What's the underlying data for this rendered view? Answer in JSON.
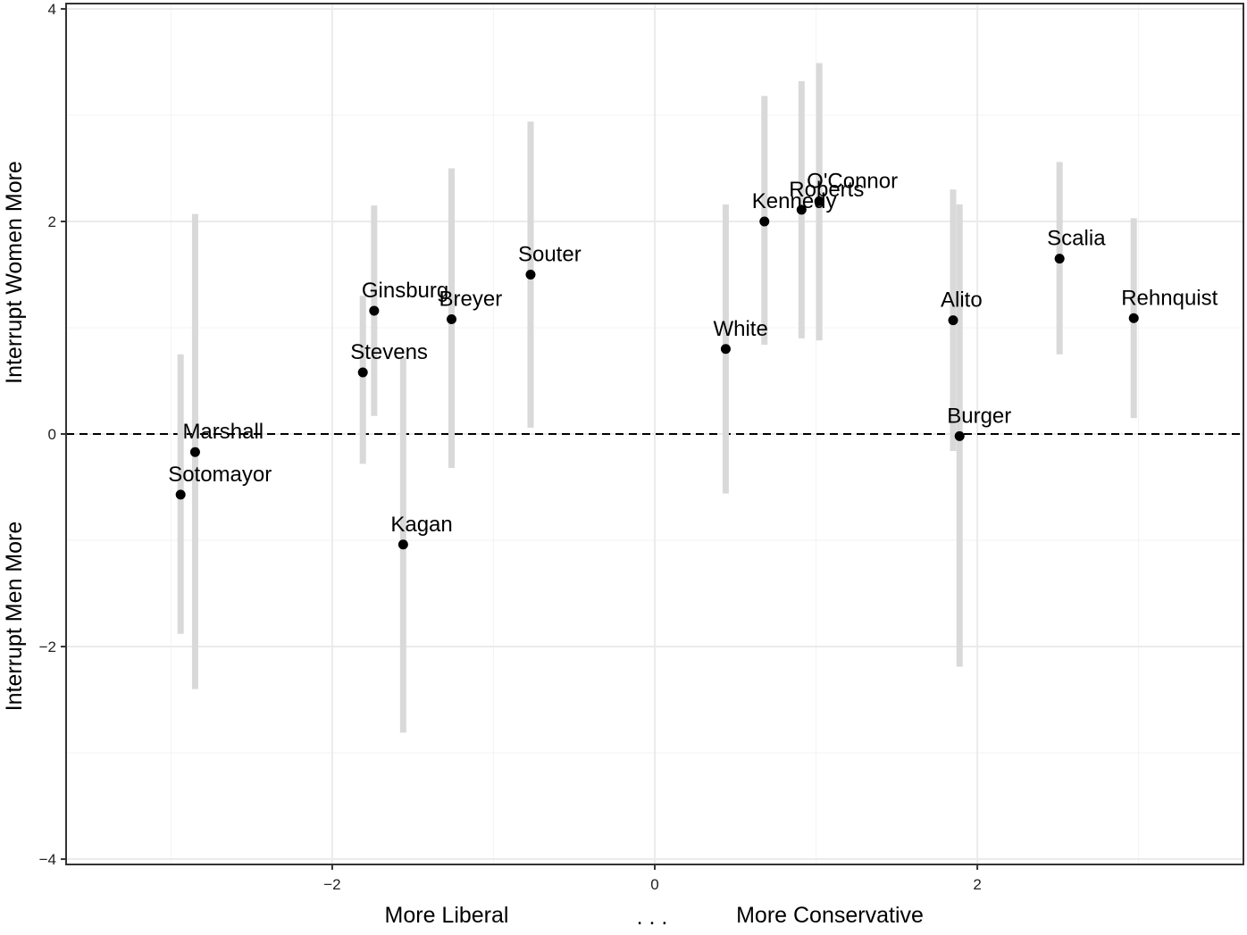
{
  "chart_data": {
    "type": "scatter",
    "xlim": [
      -3.65,
      3.65
    ],
    "ylim": [
      -4.05,
      4.05
    ],
    "x_ticks": [
      {
        "value": -2,
        "label": "−2"
      },
      {
        "value": 0,
        "label": "0"
      },
      {
        "value": 2,
        "label": "2"
      }
    ],
    "y_ticks": [
      {
        "value": 4,
        "label": "4"
      },
      {
        "value": 2,
        "label": "2"
      },
      {
        "value": 0,
        "label": "0"
      },
      {
        "value": -2,
        "label": "−2"
      },
      {
        "value": -4,
        "label": "−4"
      }
    ],
    "x_minor_grid": [
      -3,
      -1,
      1,
      3
    ],
    "y_minor_grid": [
      3,
      1,
      -1,
      -3
    ],
    "grid": true,
    "reference_line": {
      "y": 0,
      "style": "dashed"
    },
    "xlabel": {
      "left": "More Liberal",
      "middle": ". . .",
      "right": "More Conservative"
    },
    "ylabel": {
      "bottom": "Interrupt Men More",
      "top": "Interrupt Women More"
    },
    "colors": {
      "point": "#000000",
      "interval": "#d9d9d9",
      "grid": "#ebebeb",
      "border": "#333333"
    },
    "points": [
      {
        "name": "Marshall",
        "x": -2.85,
        "y": -0.17,
        "low": -2.4,
        "high": 2.07
      },
      {
        "name": "Sotomayor",
        "x": -2.94,
        "y": -0.57,
        "low": -1.88,
        "high": 0.75
      },
      {
        "name": "Ginsburg",
        "x": -1.74,
        "y": 1.16,
        "low": 0.17,
        "high": 2.15
      },
      {
        "name": "Stevens",
        "x": -1.81,
        "y": 0.58,
        "low": -0.28,
        "high": 1.3
      },
      {
        "name": "Kagan",
        "x": -1.56,
        "y": -1.04,
        "low": -2.81,
        "high": 0.72
      },
      {
        "name": "Breyer",
        "x": -1.26,
        "y": 1.08,
        "low": -0.32,
        "high": 2.5
      },
      {
        "name": "Souter",
        "x": -0.77,
        "y": 1.5,
        "low": 0.06,
        "high": 2.94
      },
      {
        "name": "White",
        "x": 0.44,
        "y": 0.8,
        "low": -0.56,
        "high": 2.16
      },
      {
        "name": "Kennedy",
        "x": 0.68,
        "y": 2.0,
        "low": 0.84,
        "high": 3.18
      },
      {
        "name": "Roberts",
        "x": 0.91,
        "y": 2.11,
        "low": 0.9,
        "high": 3.32
      },
      {
        "name": "O'Connor",
        "x": 1.02,
        "y": 2.19,
        "low": 0.88,
        "high": 3.49
      },
      {
        "name": "Alito",
        "x": 1.85,
        "y": 1.07,
        "low": -0.16,
        "high": 2.3
      },
      {
        "name": "Burger",
        "x": 1.89,
        "y": -0.02,
        "low": -2.19,
        "high": 2.16
      },
      {
        "name": "Scalia",
        "x": 2.51,
        "y": 1.65,
        "low": 0.75,
        "high": 2.56
      },
      {
        "name": "Rehnquist",
        "x": 2.97,
        "y": 1.09,
        "low": 0.15,
        "high": 2.03
      }
    ]
  }
}
